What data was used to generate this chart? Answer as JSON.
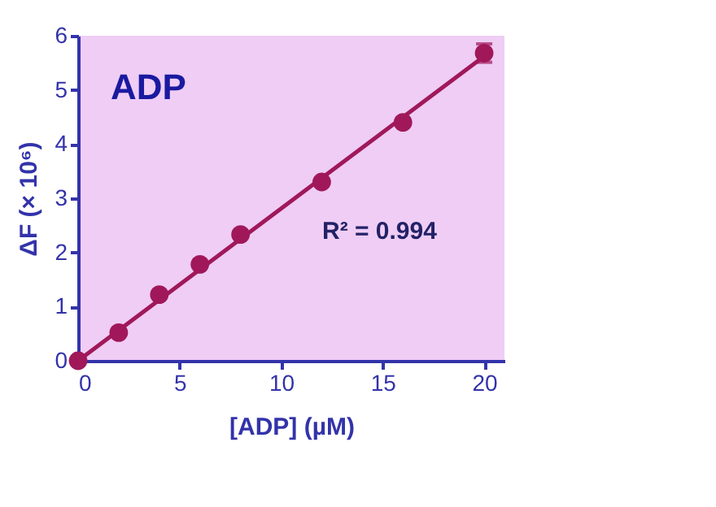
{
  "chart_data": {
    "type": "scatter",
    "title": "ADP",
    "xlabel": "[ADP] (µM)",
    "ylabel": "ΔF (× 10⁶)",
    "annotations": [
      "R² = 0.994"
    ],
    "x": [
      0,
      2,
      4,
      6,
      8,
      12,
      16,
      20
    ],
    "series": [
      {
        "color": "#a0185a",
        "values": [
          0,
          0.52,
          1.22,
          1.78,
          2.33,
          3.3,
          4.4,
          5.68
        ],
        "errors": [
          null,
          null,
          null,
          null,
          null,
          null,
          null,
          0.17
        ],
        "marker": "circle"
      },
      {
        "type": "line",
        "color": "#a0185a",
        "x": [
          0,
          20
        ],
        "values": [
          0,
          5.62
        ],
        "line_style": "solid"
      }
    ],
    "xlim": [
      0,
      21
    ],
    "ylim": [
      0,
      6
    ],
    "xticks": [
      0,
      5,
      10,
      15,
      20
    ],
    "yticks": [
      0,
      1,
      2,
      3,
      4,
      5,
      6
    ],
    "grid": false
  }
}
